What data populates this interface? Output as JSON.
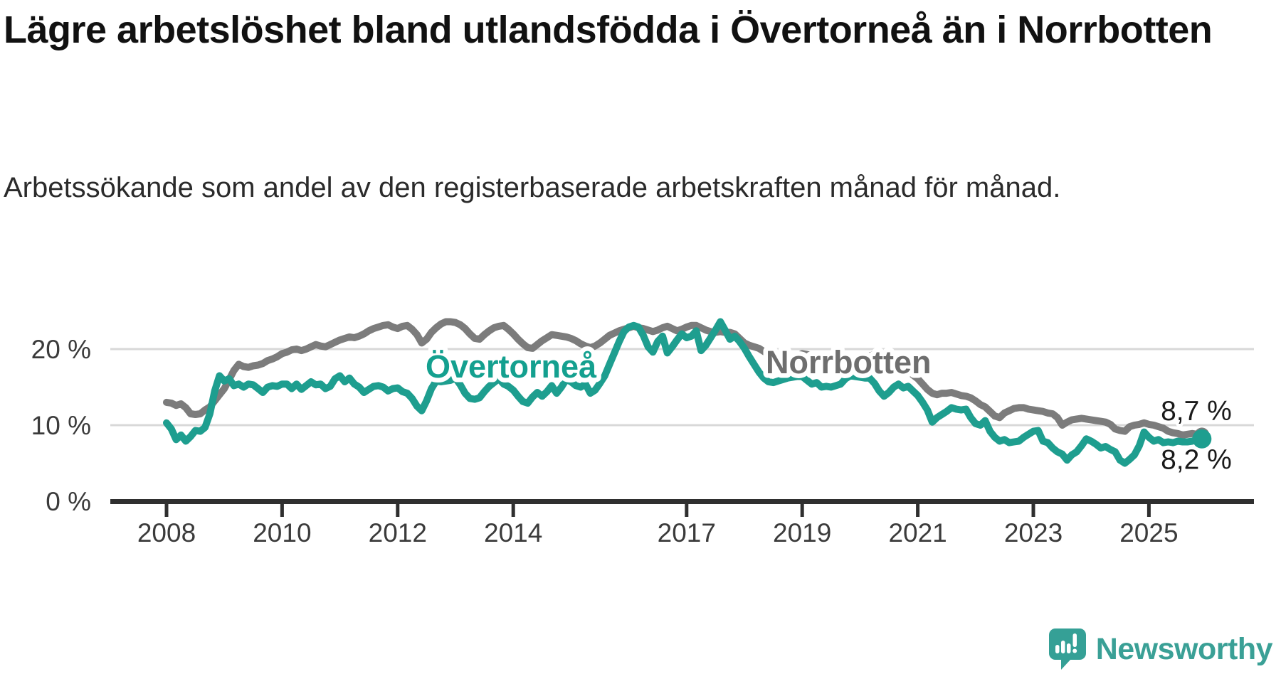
{
  "header": {
    "title": "Lägre arbetslöshet bland utlandsfödda i Övertorneå än i Norrbotten",
    "subtitle": "Arbetssökande som andel av den registerbaserade arbetskraften månad för månad."
  },
  "logo": {
    "text": "Newsworthy"
  },
  "chart_data": {
    "type": "line",
    "title": "Lägre arbetslöshet bland utlandsfödda i Övertorneå än i Norrbotten",
    "unit": "%",
    "grid": true,
    "legend": "inline-labels",
    "axis_color": "#2f2f2f",
    "grid_color": "#d8d8d8",
    "tick_color": "#3b3b3b",
    "value_label_color": "#1a1a1a",
    "start_year": 2008,
    "points_per_year": 12,
    "x_axis": {
      "ticks": [
        2008,
        2010,
        2012,
        2014,
        2017,
        2019,
        2021,
        2023,
        2025
      ]
    },
    "y_axis": {
      "range": [
        0,
        25
      ],
      "ticks": [
        {
          "value": 0,
          "label": "0 %"
        },
        {
          "value": 10,
          "label": "10 %"
        },
        {
          "value": 20,
          "label": "20 %"
        }
      ]
    },
    "series": [
      {
        "name": "Norrbotten",
        "color": "#7c7c7c",
        "label_color": "#6e6e6e",
        "end_label": "8,7 %",
        "end_label_dy": -21,
        "end_dot_radius": 10.5,
        "label_anchor": {
          "x": 1076,
          "y": 525
        },
        "values": [
          13.0,
          12.9,
          12.6,
          12.8,
          12.3,
          11.5,
          11.4,
          11.5,
          12.0,
          12.4,
          13.2,
          14.0,
          14.8,
          16.0,
          17.2,
          18.0,
          17.7,
          17.6,
          17.8,
          17.9,
          18.1,
          18.5,
          18.7,
          19.0,
          19.4,
          19.6,
          19.9,
          20.0,
          19.8,
          20.0,
          20.3,
          20.6,
          20.4,
          20.3,
          20.6,
          20.9,
          21.2,
          21.4,
          21.6,
          21.5,
          21.7,
          22.0,
          22.4,
          22.7,
          22.9,
          23.1,
          23.2,
          22.9,
          22.7,
          23.0,
          23.1,
          22.6,
          21.9,
          20.8,
          21.3,
          22.2,
          22.8,
          23.3,
          23.6,
          23.6,
          23.5,
          23.2,
          22.7,
          22.0,
          21.4,
          21.3,
          21.9,
          22.4,
          22.8,
          23.0,
          23.1,
          22.6,
          22.0,
          21.3,
          20.7,
          20.2,
          20.1,
          20.6,
          21.1,
          21.5,
          21.9,
          21.8,
          21.7,
          21.6,
          21.4,
          21.1,
          20.7,
          20.4,
          20.2,
          20.4,
          20.8,
          21.3,
          21.8,
          22.1,
          22.4,
          22.6,
          22.8,
          23.0,
          22.8,
          22.7,
          22.5,
          22.3,
          22.5,
          22.8,
          23.0,
          22.7,
          22.4,
          22.6,
          22.9,
          23.1,
          23.1,
          22.8,
          22.5,
          22.3,
          22.2,
          22.3,
          22.2,
          22.2,
          22.0,
          21.4,
          20.8,
          20.5,
          20.3,
          20.1,
          19.7,
          19.3,
          18.8,
          18.3,
          18.5,
          18.7,
          18.9,
          19.1,
          19.4,
          19.3,
          19.1,
          18.8,
          18.6,
          18.2,
          18.0,
          17.8,
          17.9,
          18.1,
          18.3,
          18.5,
          18.7,
          18.9,
          19.1,
          19.3,
          19.5,
          19.4,
          19.2,
          18.8,
          18.4,
          17.8,
          17.2,
          16.6,
          16.1,
          15.4,
          14.7,
          14.2,
          14.0,
          14.2,
          14.2,
          14.3,
          14.1,
          13.9,
          13.8,
          13.6,
          13.2,
          12.7,
          12.4,
          11.8,
          11.2,
          11.0,
          11.6,
          11.9,
          12.2,
          12.3,
          12.3,
          12.1,
          12.0,
          11.9,
          11.8,
          11.6,
          11.5,
          11.0,
          10.0,
          10.4,
          10.7,
          10.8,
          10.9,
          10.8,
          10.7,
          10.6,
          10.5,
          10.4,
          10.1,
          9.5,
          9.3,
          9.2,
          9.8,
          10.0,
          10.1,
          10.3,
          10.1,
          10.0,
          9.8,
          9.6,
          9.2,
          9.0,
          8.9,
          8.7,
          8.8,
          8.9,
          8.8,
          8.7
        ]
      },
      {
        "name": "Övertorneå",
        "color": "#1e9e8f",
        "label_color": "#14a08f",
        "end_label": "8,2 %",
        "end_label_dy": 42,
        "end_dot_radius": 13.5,
        "label_anchor": {
          "x": 598,
          "y": 531
        },
        "values": [
          10.3,
          9.5,
          8.1,
          8.7,
          7.9,
          8.5,
          9.3,
          9.2,
          9.7,
          11.5,
          14.5,
          16.5,
          15.8,
          16.1,
          15.2,
          15.4,
          15.0,
          15.4,
          15.3,
          14.8,
          14.3,
          15.0,
          15.2,
          15.1,
          15.4,
          15.4,
          14.8,
          15.4,
          14.7,
          15.2,
          15.7,
          15.3,
          15.4,
          14.8,
          15.1,
          16.1,
          16.5,
          15.7,
          16.2,
          15.4,
          15.0,
          14.3,
          14.7,
          15.1,
          15.2,
          15.0,
          14.5,
          14.8,
          14.9,
          14.4,
          14.2,
          13.5,
          12.5,
          11.9,
          13.2,
          14.8,
          15.8,
          15.7,
          15.8,
          15.9,
          16.2,
          15.3,
          14.2,
          13.5,
          13.4,
          13.6,
          14.4,
          15.1,
          15.6,
          16.1,
          15.4,
          15.1,
          14.6,
          13.8,
          13.1,
          12.9,
          13.7,
          14.3,
          13.8,
          14.4,
          15.2,
          14.2,
          15.0,
          16.0,
          15.7,
          15.2,
          15.0,
          15.4,
          14.2,
          14.6,
          15.5,
          16.5,
          18.0,
          19.5,
          21.0,
          22.3,
          22.9,
          23.1,
          22.9,
          21.8,
          20.3,
          19.6,
          21.0,
          21.7,
          19.5,
          20.3,
          21.2,
          22.0,
          21.5,
          21.7,
          22.4,
          19.8,
          20.5,
          21.5,
          22.5,
          23.6,
          22.5,
          21.3,
          21.7,
          21.0,
          20.1,
          19.0,
          18.0,
          17.0,
          16.2,
          15.7,
          15.6,
          15.8,
          16.0,
          16.2,
          16.3,
          16.4,
          16.4,
          15.9,
          15.4,
          15.6,
          15.0,
          15.1,
          15.0,
          15.2,
          15.4,
          16.1,
          16.5,
          16.4,
          16.3,
          16.2,
          16.2,
          15.5,
          14.5,
          13.8,
          14.3,
          15.0,
          15.4,
          14.9,
          15.1,
          14.5,
          13.9,
          13.0,
          12.0,
          10.4,
          11.0,
          11.4,
          11.8,
          12.3,
          12.1,
          12.0,
          12.1,
          11.0,
          10.2,
          10.0,
          10.6,
          9.2,
          8.4,
          7.9,
          8.1,
          7.7,
          7.8,
          7.9,
          8.4,
          8.8,
          9.2,
          9.3,
          7.9,
          7.7,
          7.0,
          6.5,
          6.2,
          5.4,
          6.1,
          6.5,
          7.3,
          8.2,
          7.9,
          7.5,
          7.0,
          7.2,
          6.8,
          6.5,
          5.4,
          5.0,
          5.5,
          6.1,
          7.3,
          9.1,
          8.4,
          7.9,
          8.1,
          7.7,
          7.8,
          7.7,
          7.9,
          7.8,
          7.8,
          7.9,
          8.1,
          8.2
        ]
      }
    ]
  }
}
